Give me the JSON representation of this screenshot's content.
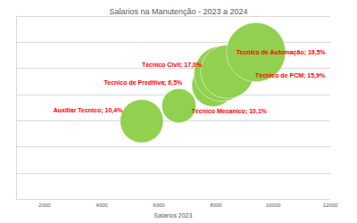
{
  "chart_data": {
    "type": "bubble",
    "title": "Salarios na Manutenção - 2023 a 2024",
    "x_label": "Salarios 2023",
    "labels": [
      "Auxiliar Tecnico; 10,4%",
      "Tecnico de Preditiva; 6,5%",
      "Técnico Mecanico; 10,1%",
      "Técnico Civil; 17,0%",
      "Técnico de PCM; 15,9%",
      "Tecnico de Automação; 19,5%"
    ],
    "x": [
      5400,
      6700,
      7900,
      8200,
      8400,
      9400
    ],
    "values": [
      5960,
      7140,
      8700,
      9590,
      9740,
      11230
    ],
    "sizes": [
      10.4,
      6.5,
      10.1,
      17.0,
      15.9,
      19.5
    ],
    "color": "#92d050",
    "xlim": [
      1000,
      12000
    ],
    "xticks": [
      2000,
      4000,
      6000,
      8000,
      10000,
      12000
    ],
    "ylim": [
      0,
      14000
    ],
    "yticks": [
      0,
      2000,
      4000,
      6000,
      8000,
      10000,
      12000,
      14000
    ],
    "grid": true,
    "tick_labels": "x",
    "data_labels": true
  }
}
